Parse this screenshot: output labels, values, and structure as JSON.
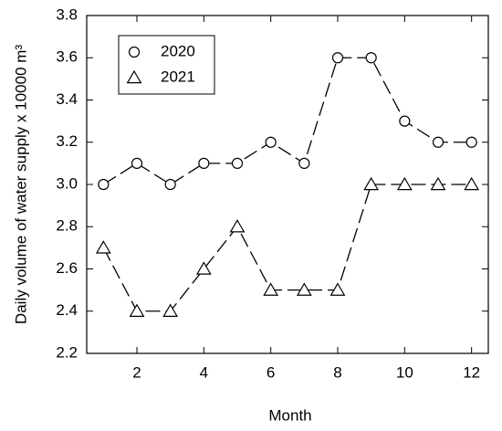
{
  "chart_data": {
    "type": "line",
    "x_label": "Month",
    "y_label": "Daily volume of water supply x 10000 m³",
    "x": [
      1,
      2,
      3,
      4,
      5,
      6,
      7,
      8,
      9,
      10,
      11,
      12
    ],
    "series": [
      {
        "name": "2020",
        "color": "#000000",
        "marker": "circle",
        "values": [
          3.0,
          3.1,
          3.0,
          3.1,
          3.1,
          3.2,
          3.1,
          3.6,
          3.6,
          3.3,
          3.2,
          3.2
        ]
      },
      {
        "name": "2021",
        "color": "#000000",
        "marker": "triangle",
        "values": [
          2.7,
          2.4,
          2.4,
          2.6,
          2.8,
          2.5,
          2.5,
          2.5,
          3.0,
          3.0,
          3.0,
          3.0
        ]
      }
    ],
    "xlim": [
      0.5,
      12.5
    ],
    "ylim": [
      2.2,
      3.8
    ],
    "xticks": [
      2,
      4,
      6,
      8,
      10,
      12
    ],
    "yticks": [
      2.2,
      2.4,
      2.6,
      2.8,
      {
        "value": 3,
        "label": "3.0"
      },
      3.2,
      3.4,
      3.6,
      3.8
    ],
    "legend": "upper left",
    "grid": false
  }
}
